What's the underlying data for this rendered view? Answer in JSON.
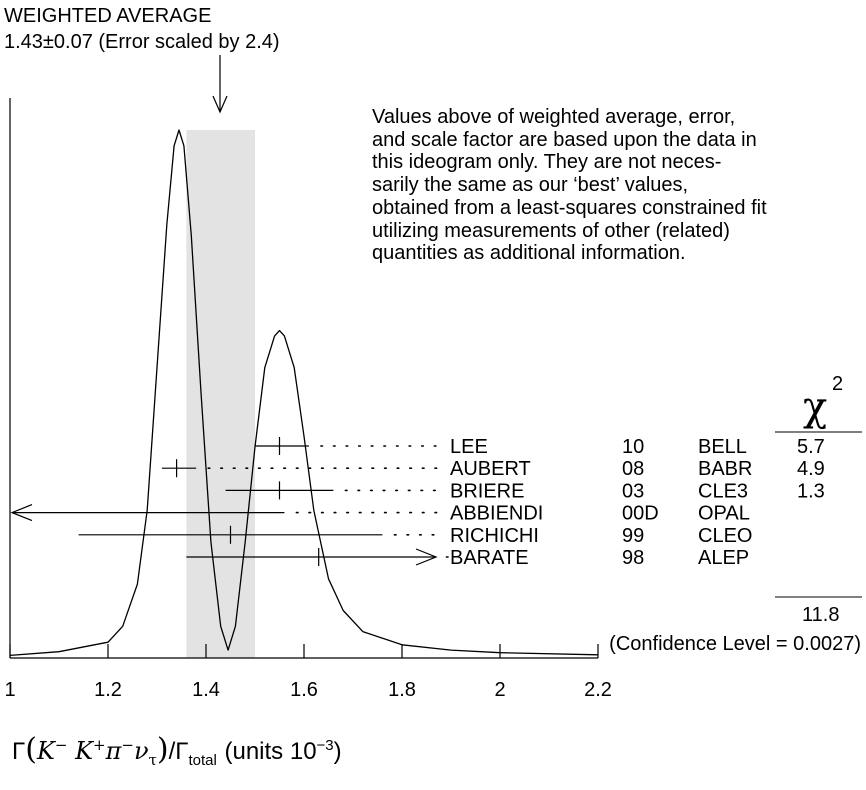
{
  "header": {
    "line1": "WEIGHTED AVERAGE",
    "line2": "1.43±0.07 (Error scaled by 2.4)"
  },
  "note_lines": [
    "Values above of weighted average, error,",
    "and scale factor are based upon the data in",
    "this ideogram only.  They are not neces-",
    "sarily the same as our ‘best’ values,",
    "obtained from a least-squares constrained fit",
    "utilizing measurements of other (related)",
    "quantities as additional information."
  ],
  "chi2_header": "χ",
  "chi2_exponent": "2",
  "chi2_total": "11.8",
  "confidence_level": "(Confidence Level = 0.0027)",
  "x_axis_label": {
    "gamma": "Γ",
    "left_paren": "(",
    "k_minus": "K",
    "k_minus_sup": "−",
    "k_plus": "K",
    "k_plus_sup": "+",
    "pi": "π",
    "pi_sup": "−",
    "nu": "ν",
    "nu_sub": "τ",
    "right_paren": ")",
    "slash": "/Γ",
    "total_sub": "total",
    "units": "(units 10",
    "units_exp": "−3",
    "units_close": ")"
  },
  "colors": {
    "band": "#e3e3e3",
    "ink": "#000000"
  },
  "chart_data": {
    "type": "ideogram",
    "xlim": [
      1.0,
      2.2
    ],
    "x_ticks": [
      "1",
      "1.2",
      "1.4",
      "1.6",
      "1.8",
      "2",
      "2.2"
    ],
    "x_tick_values": [
      1.0,
      1.2,
      1.4,
      1.6,
      1.8,
      2.0,
      2.2
    ],
    "weighted_average": {
      "value": 1.43,
      "error": 0.07,
      "scale_factor": 2.4
    },
    "measurements": [
      {
        "author": "LEE",
        "year": "10",
        "experiment": "BELL",
        "value": 1.55,
        "lo": 1.5,
        "hi": 1.61,
        "chi2": "5.7"
      },
      {
        "author": "AUBERT",
        "year": "08",
        "experiment": "BABR",
        "value": 1.34,
        "lo": 1.31,
        "hi": 1.38,
        "chi2": "4.9"
      },
      {
        "author": "BRIERE",
        "year": "03",
        "experiment": "CLE3",
        "value": 1.55,
        "lo": 1.44,
        "hi": 1.66,
        "chi2": "1.3"
      },
      {
        "author": "ABBIENDI",
        "year": "00D",
        "experiment": "OPAL",
        "value": 0.87,
        "lo": null,
        "hi": 1.56,
        "chi2": ""
      },
      {
        "author": "RICHICHI",
        "year": "99",
        "experiment": "CLEO",
        "value": 1.45,
        "lo": 1.14,
        "hi": 1.76,
        "chi2": ""
      },
      {
        "author": "BARATE",
        "year": "98",
        "experiment": "ALEP",
        "value": 1.63,
        "lo": 1.36,
        "hi": null,
        "chi2": ""
      }
    ],
    "ideogram_curve": [
      [
        1.0,
        0.005
      ],
      [
        1.1,
        0.012
      ],
      [
        1.2,
        0.03
      ],
      [
        1.23,
        0.06
      ],
      [
        1.26,
        0.14
      ],
      [
        1.28,
        0.28
      ],
      [
        1.3,
        0.55
      ],
      [
        1.32,
        0.82
      ],
      [
        1.335,
        0.97
      ],
      [
        1.345,
        1.0
      ],
      [
        1.355,
        0.97
      ],
      [
        1.37,
        0.8
      ],
      [
        1.39,
        0.5
      ],
      [
        1.41,
        0.22
      ],
      [
        1.43,
        0.06
      ],
      [
        1.445,
        0.015
      ],
      [
        1.46,
        0.06
      ],
      [
        1.48,
        0.22
      ],
      [
        1.5,
        0.4
      ],
      [
        1.52,
        0.55
      ],
      [
        1.54,
        0.61
      ],
      [
        1.55,
        0.62
      ],
      [
        1.56,
        0.61
      ],
      [
        1.58,
        0.55
      ],
      [
        1.6,
        0.42
      ],
      [
        1.62,
        0.28
      ],
      [
        1.65,
        0.15
      ],
      [
        1.68,
        0.09
      ],
      [
        1.72,
        0.05
      ],
      [
        1.8,
        0.025
      ],
      [
        1.9,
        0.015
      ],
      [
        2.0,
        0.01
      ],
      [
        2.2,
        0.006
      ]
    ]
  }
}
